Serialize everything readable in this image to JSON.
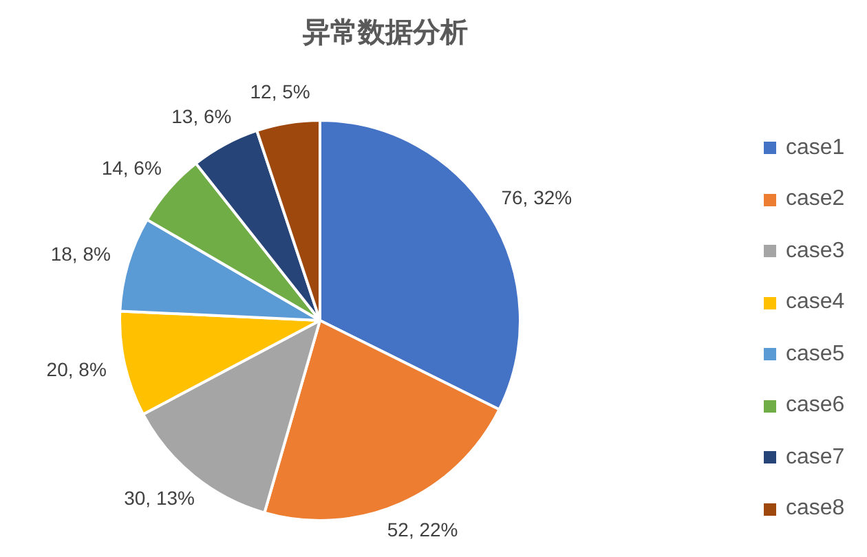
{
  "chart_data": {
    "type": "pie",
    "title": "异常数据分析",
    "categories": [
      "case1",
      "case2",
      "case3",
      "case4",
      "case5",
      "case6",
      "case7",
      "case8"
    ],
    "values": [
      76,
      52,
      30,
      20,
      18,
      14,
      13,
      12
    ],
    "colors": [
      "#4472c4",
      "#ed7d31",
      "#a5a5a5",
      "#ffc000",
      "#5b9bd5",
      "#70ad47",
      "#264478",
      "#9e480e"
    ],
    "value_labels": [
      "76, 32%",
      "52, 22%",
      "30, 13%",
      "20, 8%",
      "18, 8%",
      "14, 6%",
      "13, 6%",
      "12, 5%"
    ],
    "legend": "right"
  }
}
